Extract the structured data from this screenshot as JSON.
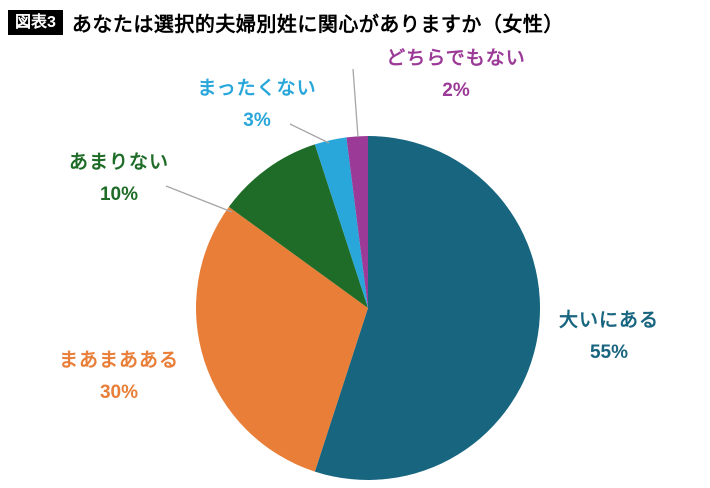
{
  "header": {
    "tag": "図表3",
    "title": "あなたは選択的夫婦別姓に関心がありますか（女性）"
  },
  "chart_data": {
    "type": "pie",
    "title": "あなたは選択的夫婦別姓に関心がありますか（女性）",
    "start_angle_deg": 0,
    "direction": "clockwise",
    "legend": "none",
    "label_position": "outside",
    "leader_line_color": "#a6a6a6",
    "slices": [
      {
        "label": "大いにある",
        "value": 55,
        "pct_label": "55%",
        "color": "#186580"
      },
      {
        "label": "まあまあある",
        "value": 30,
        "pct_label": "30%",
        "color": "#e87e38"
      },
      {
        "label": "あまりない",
        "value": 10,
        "pct_label": "10%",
        "color": "#1e6c27"
      },
      {
        "label": "まったくない",
        "value": 3,
        "pct_label": "3%",
        "color": "#29a7da"
      },
      {
        "label": "どちらでもない",
        "value": 2,
        "pct_label": "2%",
        "color": "#9b3a97"
      }
    ]
  }
}
